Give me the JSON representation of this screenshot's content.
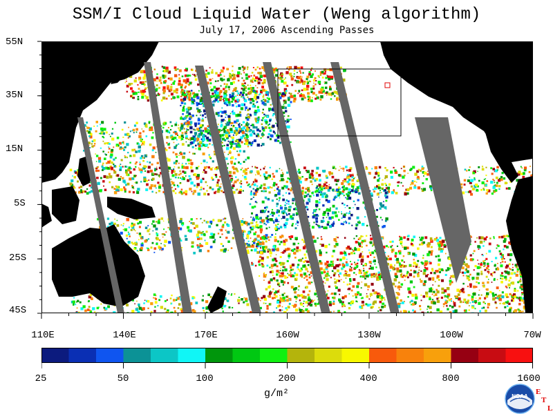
{
  "title": "SSM/I Cloud Liquid Water (Weng algorithm)",
  "subtitle": "July 17, 2006  Ascending Passes",
  "lat_labels": [
    "55N",
    "35N",
    "15N",
    "5S",
    "25S",
    "45S"
  ],
  "lon_labels": [
    "110E",
    "140E",
    "170E",
    "160W",
    "130W",
    "100W",
    "70W"
  ],
  "colorbar": {
    "tick_labels": [
      "25",
      "50",
      "100",
      "200",
      "400",
      "800",
      "1600"
    ],
    "unit": "g/m²",
    "colors": [
      "#0c1b7e",
      "#0a2fb4",
      "#0f55f0",
      "#0c9296",
      "#0cc6c6",
      "#10f6f6",
      "#00960c",
      "#00c812",
      "#10f010",
      "#b4b40c",
      "#dcdc0c",
      "#f8f800",
      "#f85a0c",
      "#f8820c",
      "#f8a00c",
      "#960012",
      "#c80c12",
      "#f81010"
    ]
  },
  "colors": {
    "land": "#000000",
    "swath_gap": "#666666",
    "background": "#ffffff",
    "box": "#000000",
    "marker": "#e00000"
  },
  "logo": {
    "text": "NOAA",
    "etl_letters": [
      "E",
      "T",
      "L"
    ]
  }
}
